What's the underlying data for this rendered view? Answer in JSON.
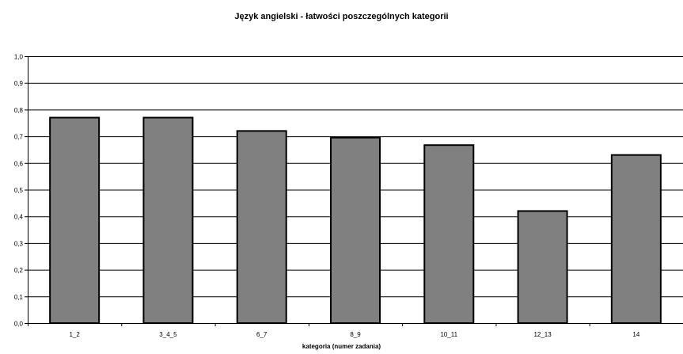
{
  "chart_data": {
    "type": "bar",
    "title": "Język angielski - łatwości poszczególnych kategorii",
    "xlabel": "kategoria (numer zadania)",
    "ylabel": "",
    "categories": [
      "1_2",
      "3_4_5",
      "6_7",
      "8_9",
      "10_11",
      "12_13",
      "14"
    ],
    "values": [
      0.77,
      0.77,
      0.72,
      0.695,
      0.667,
      0.42,
      0.63
    ],
    "ylim": [
      0,
      1
    ],
    "yticks": [
      0.0,
      0.1,
      0.2,
      0.3,
      0.4,
      0.5,
      0.6,
      0.7,
      0.8,
      0.9,
      1.0
    ],
    "ytick_labels": [
      "0,0",
      "0,1",
      "0,2",
      "0,3",
      "0,4",
      "0,5",
      "0,6",
      "0,7",
      "0,8",
      "0,9",
      "1,0"
    ],
    "grid": true,
    "legend": "none",
    "colors": {
      "bar_fill": "#808080",
      "bar_stroke": "#000000",
      "grid": "#000000"
    }
  }
}
